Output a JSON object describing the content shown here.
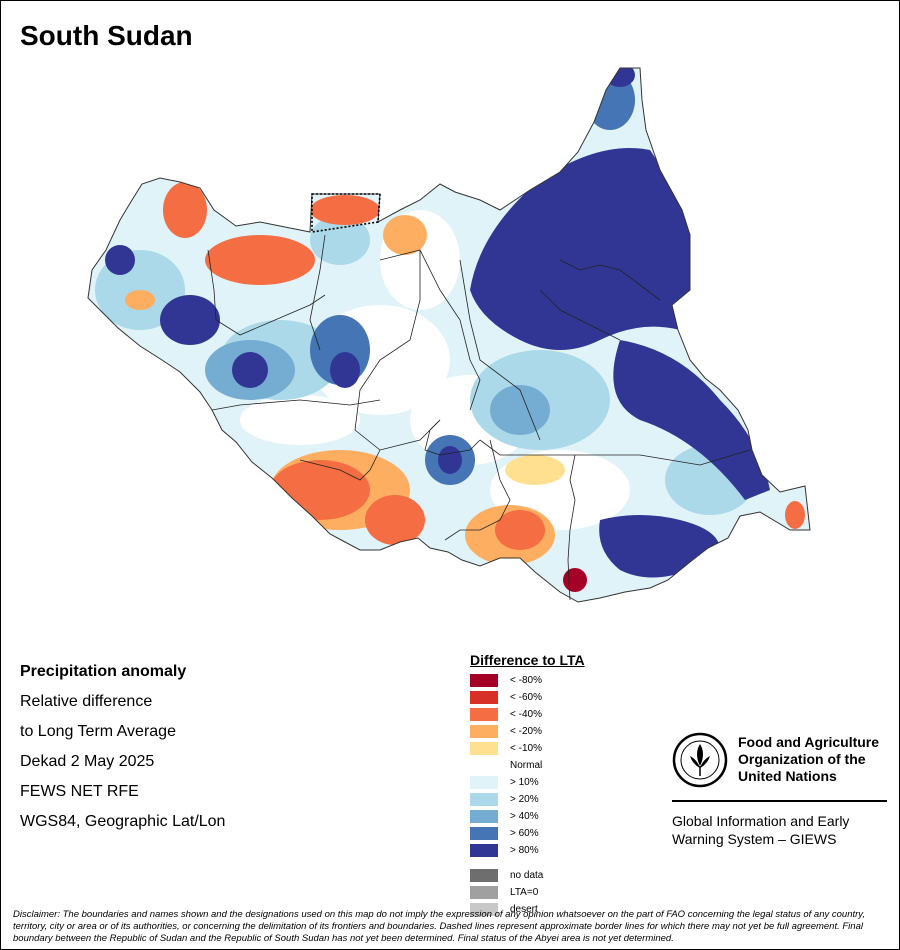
{
  "title": "South Sudan",
  "info": {
    "heading": "Precipitation anomaly",
    "line1": "Relative difference",
    "line2": "to Long Term Average",
    "period": "Dekad 2 May 2025",
    "source": "FEWS NET RFE",
    "projection": "WGS84, Geographic Lat/Lon"
  },
  "legend": {
    "title": "Difference to LTA",
    "items": [
      {
        "label": "< -80%",
        "color": "#a50026"
      },
      {
        "label": "< -60%",
        "color": "#d73027"
      },
      {
        "label": "< -40%",
        "color": "#f46d43"
      },
      {
        "label": "< -20%",
        "color": "#fdae61"
      },
      {
        "label": "< -10%",
        "color": "#fee090"
      },
      {
        "label": "Normal",
        "color": "#ffffff"
      },
      {
        "label": "> 10%",
        "color": "#e0f3f8"
      },
      {
        "label": "> 20%",
        "color": "#abd9e9"
      },
      {
        "label": "> 40%",
        "color": "#74add1"
      },
      {
        "label": "> 60%",
        "color": "#4575b4"
      },
      {
        "label": "> 80%",
        "color": "#313695"
      }
    ],
    "extra": [
      {
        "label": "no data",
        "color": "#6e6e6e"
      },
      {
        "label": "LTA=0",
        "color": "#a0a0a0"
      },
      {
        "label": "desert",
        "color": "#c8c8c8"
      }
    ]
  },
  "logo": {
    "org_line1": "Food and Agriculture",
    "org_line2": "Organization of the",
    "org_line3": "United Nations",
    "system_line1": "Global Information and Early",
    "system_line2": "Warning System – GIEWS"
  },
  "disclaimer": "Disclaimer: The boundaries and names shown and the designations used on this map do not imply the expression of any opinion whatsoever on the part of FAO concerning the legal status of any country, territory, city or area or of its authorities, or concerning the delimitation of its frontiers and boundaries. Dashed lines represent approximate border lines for which there may not yet be full agreement.  Final boundary between the Republic of Sudan and the Republic of South Sudan has not yet been determined. Final status of the Abyei area is not yet determined."
}
